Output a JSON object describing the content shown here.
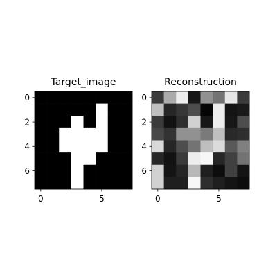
{
  "chart_data": [
    {
      "type": "heatmap",
      "title": "Target_image",
      "colormap": "gray",
      "value_range": [
        0,
        1
      ],
      "x_ticks": [
        0,
        5
      ],
      "y_ticks": [
        0,
        2,
        4,
        6
      ],
      "values": [
        [
          0,
          0,
          0,
          0,
          0,
          0,
          0,
          0
        ],
        [
          0,
          0,
          0,
          0,
          0,
          1,
          0,
          0
        ],
        [
          0,
          0,
          0,
          1,
          0,
          1,
          0,
          0
        ],
        [
          0,
          0,
          1,
          1,
          1,
          1,
          0,
          0
        ],
        [
          0,
          0,
          1,
          1,
          1,
          1,
          0,
          0
        ],
        [
          0,
          0,
          0,
          1,
          1,
          0,
          0,
          0
        ],
        [
          0,
          0,
          0,
          1,
          0,
          0,
          0,
          0
        ],
        [
          0,
          0,
          0,
          1,
          0,
          0,
          0,
          0
        ]
      ]
    },
    {
      "type": "heatmap",
      "title": "Reconstruction",
      "colormap": "gray",
      "value_range": [
        0,
        1
      ],
      "x_ticks": [
        0,
        5
      ],
      "y_ticks": [
        0,
        2,
        4,
        6
      ],
      "values": [
        [
          0.23,
          0.67,
          0.93,
          0.09,
          0.57,
          0.45,
          0.9,
          0.23
        ],
        [
          0.75,
          0.15,
          0.21,
          0.3,
          0.02,
          0.93,
          0.08,
          0.1
        ],
        [
          0.23,
          0.07,
          0.18,
          0.82,
          0.09,
          0.93,
          0.09,
          0.3
        ],
        [
          0.28,
          0.2,
          0.57,
          0.57,
          0.48,
          0.75,
          0.16,
          0.18
        ],
        [
          0.85,
          0.15,
          0.3,
          0.45,
          0.75,
          0.86,
          0.35,
          0.5
        ],
        [
          0.15,
          0.07,
          0.23,
          0.93,
          0.97,
          0.15,
          0.25,
          0.45
        ],
        [
          0.82,
          0.08,
          0.15,
          0.72,
          0.12,
          0.05,
          0.25,
          0.08
        ],
        [
          0.82,
          0.12,
          0.12,
          0.97,
          0.18,
          0.12,
          0.08,
          0.05
        ]
      ]
    }
  ]
}
